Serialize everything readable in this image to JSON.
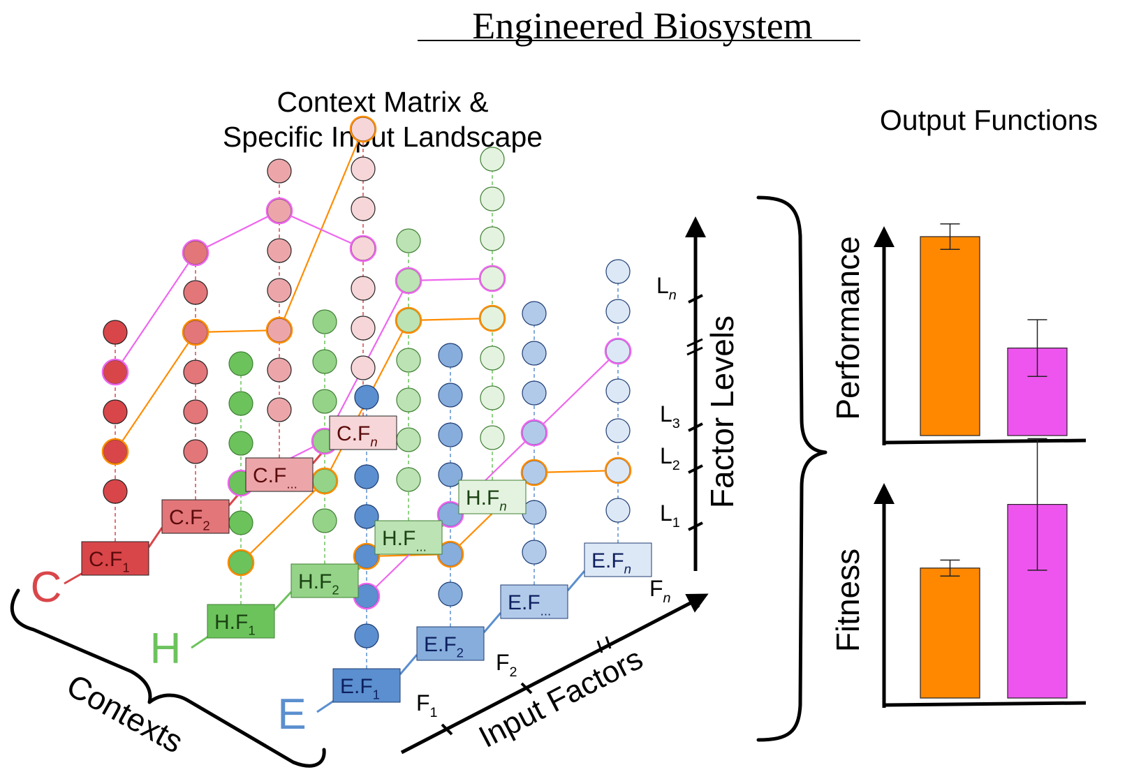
{
  "title": "Engineered Biosystem",
  "heading_left_line1": "Context Matrix &",
  "heading_left_line2": "Specific Input Landscape",
  "heading_right": "Output Functions",
  "contexts_label": "Contexts",
  "input_factors_label": "Input Factors",
  "factor_levels_label": "Factor Levels",
  "contexts": [
    {
      "letter": "C",
      "color": "#d9464a",
      "box_fill": "#d9565a",
      "text_color": "#5a0a0a",
      "box_labels": [
        {
          "main": "C.F",
          "sub": "1"
        },
        {
          "main": "C.F",
          "sub": "2"
        },
        {
          "main": "C.F",
          "sub": "..."
        },
        {
          "main": "C.F",
          "sub": "n",
          "italic": true
        }
      ]
    },
    {
      "letter": "H",
      "color": "#6cc35c",
      "box_fill": "#71c462",
      "text_color": "#1a4212",
      "box_labels": [
        {
          "main": "H.F",
          "sub": "1"
        },
        {
          "main": "H.F",
          "sub": "2"
        },
        {
          "main": "H.F",
          "sub": "..."
        },
        {
          "main": "H.F",
          "sub": "n",
          "italic": true
        }
      ]
    },
    {
      "letter": "E",
      "color": "#5b8fcf",
      "box_fill": "#5b8fd2",
      "text_color": "#0d1f5e",
      "box_labels": [
        {
          "main": "E.F",
          "sub": "1"
        },
        {
          "main": "E.F",
          "sub": "2"
        },
        {
          "main": "E.F",
          "sub": "..."
        },
        {
          "main": "E.F",
          "sub": "n",
          "italic": true
        }
      ]
    }
  ],
  "input_factor_ticks": [
    {
      "main": "F",
      "sub": "1"
    },
    {
      "main": "F",
      "sub": "2"
    },
    {
      "main": "F",
      "sub": "n",
      "italic": true
    }
  ],
  "factor_level_ticks": [
    {
      "main": "L",
      "sub": "1"
    },
    {
      "main": "L",
      "sub": "2"
    },
    {
      "main": "L",
      "sub": "3"
    },
    {
      "main": "L",
      "sub": "n",
      "italic": true
    }
  ],
  "series_colors": {
    "orange": "#ff8c00",
    "magenta": "#ee66ee"
  },
  "chart_data": [
    {
      "type": "bar",
      "ylabel": "Performance",
      "categories": [
        "orange",
        "magenta"
      ],
      "values": [
        0.75,
        0.33
      ],
      "errors": [
        0.048,
        0.107
      ],
      "colors": [
        "#ff8800",
        "#ee55ee"
      ]
    },
    {
      "type": "bar",
      "ylabel": "Fitness",
      "categories": [
        "orange",
        "magenta"
      ],
      "values": [
        0.49,
        0.73
      ],
      "errors": [
        0.03,
        0.248
      ],
      "colors": [
        "#ff8800",
        "#ee55ee"
      ]
    }
  ]
}
